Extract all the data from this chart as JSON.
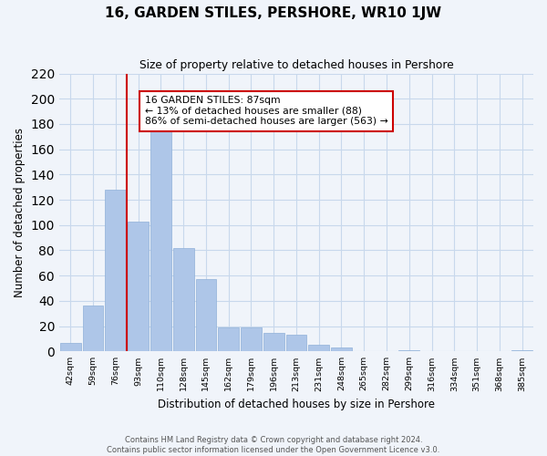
{
  "title": "16, GARDEN STILES, PERSHORE, WR10 1JW",
  "subtitle": "Size of property relative to detached houses in Pershore",
  "xlabel": "Distribution of detached houses by size in Pershore",
  "ylabel": "Number of detached properties",
  "bar_labels": [
    "42sqm",
    "59sqm",
    "76sqm",
    "93sqm",
    "110sqm",
    "128sqm",
    "145sqm",
    "162sqm",
    "179sqm",
    "196sqm",
    "213sqm",
    "231sqm",
    "248sqm",
    "265sqm",
    "282sqm",
    "299sqm",
    "316sqm",
    "334sqm",
    "351sqm",
    "368sqm",
    "385sqm"
  ],
  "bar_heights": [
    7,
    36,
    128,
    103,
    183,
    82,
    57,
    19,
    19,
    15,
    13,
    5,
    3,
    0,
    0,
    1,
    0,
    0,
    0,
    0,
    1
  ],
  "bar_color": "#aec6e8",
  "vline_color": "#cc0000",
  "annotation_text": "16 GARDEN STILES: 87sqm\n← 13% of detached houses are smaller (88)\n86% of semi-detached houses are larger (563) →",
  "annotation_box_color": "#ffffff",
  "annotation_box_edgecolor": "#cc0000",
  "ylim": [
    0,
    220
  ],
  "yticks": [
    0,
    20,
    40,
    60,
    80,
    100,
    120,
    140,
    160,
    180,
    200,
    220
  ],
  "footer_line1": "Contains HM Land Registry data © Crown copyright and database right 2024.",
  "footer_line2": "Contains public sector information licensed under the Open Government Licence v3.0.",
  "bg_color": "#f0f4fa",
  "grid_color": "#c8d8ec"
}
